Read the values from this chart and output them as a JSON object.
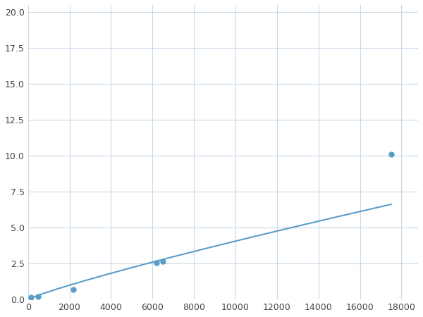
{
  "x_markers": [
    156,
    500,
    2200,
    6200,
    6500,
    17500
  ],
  "y_markers": [
    0.18,
    0.2,
    0.7,
    2.55,
    2.65,
    10.1
  ],
  "line_color": "#5b9dc9",
  "marker_color": "#5b9dc9",
  "marker_size": 5,
  "xlim": [
    0,
    18800
  ],
  "ylim": [
    0,
    20.5
  ],
  "xticks": [
    0,
    2000,
    4000,
    6000,
    8000,
    10000,
    12000,
    14000,
    16000,
    18000
  ],
  "yticks": [
    0.0,
    2.5,
    5.0,
    7.5,
    10.0,
    12.5,
    15.0,
    17.5,
    20.0
  ],
  "grid_color": "#c8d8e8",
  "background_color": "#ffffff",
  "linewidth": 1.5,
  "power_a": 1.2e-05,
  "power_b": 1.58
}
